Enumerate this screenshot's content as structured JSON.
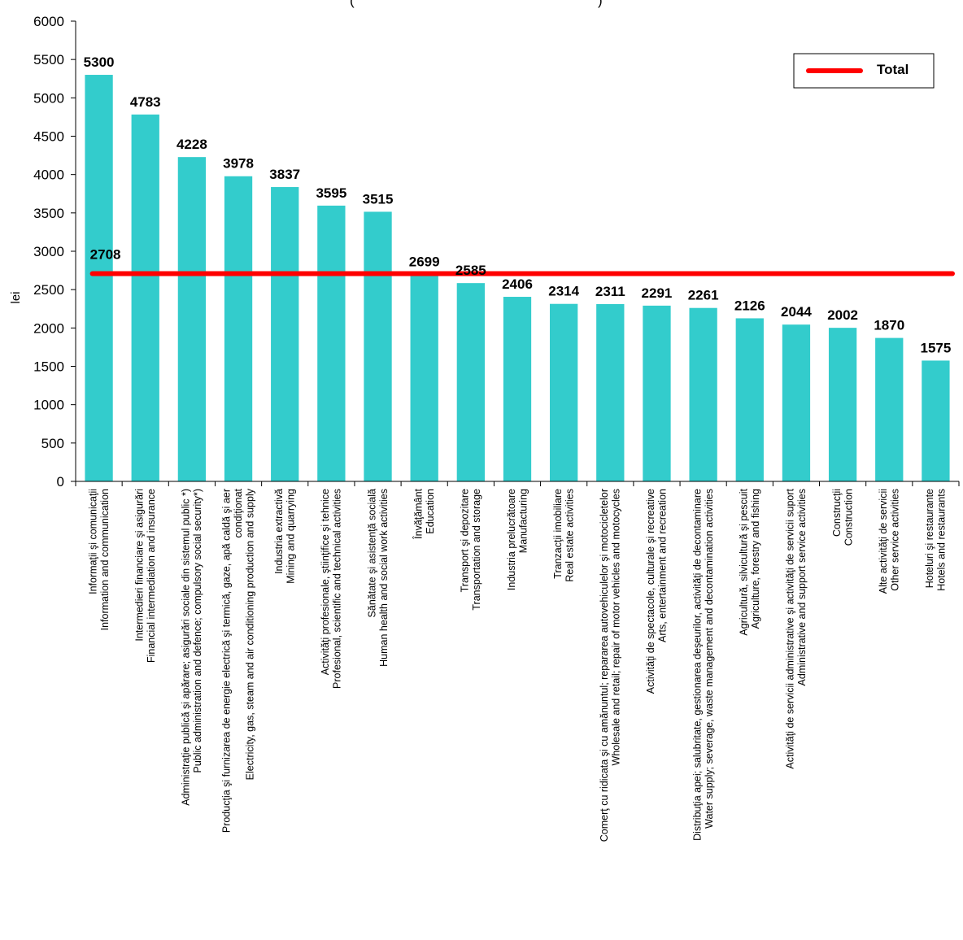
{
  "title_fragment": "(",
  "title_fragment_end": ")",
  "chart_data": {
    "type": "bar",
    "ylabel": "lei",
    "ylim": [
      0,
      6000
    ],
    "yticks": [
      0,
      500,
      1000,
      1500,
      2000,
      2500,
      3000,
      3500,
      4000,
      4500,
      5000,
      5500,
      6000
    ],
    "grid": false,
    "legend_position": "top-right",
    "categories": [
      [
        "Informaţii şi comunicaţii",
        "Information and communication"
      ],
      [
        "Intermedieri financiare şi asigurări",
        "Financial intermediation and insurance"
      ],
      [
        "Administraţie publică şi apărare; asigurări sociale din sistemul public *)",
        "Public administration and defence; compulsory social security*)"
      ],
      [
        "Producţia şi furnizarea de energie electrică şi termică, gaze, apă caldă şi aer",
        "condiţionat",
        "Electricity, gas, steam and air conditioning production and supply"
      ],
      [
        "Industria extractivă",
        "Mining and quarrying"
      ],
      [
        "Activităţi profesionale, ştiinţifice şi tehnice",
        "Profesional, scientific and technical activities"
      ],
      [
        "Sănătate şi asistenţă socială",
        "Human health and social work activities"
      ],
      [
        "Învăţământ",
        "Education"
      ],
      [
        "Transport şi depozitare",
        "Transportation and storage"
      ],
      [
        "Industria prelucrătoare",
        "Manufacturing"
      ],
      [
        "Tranzacţii imobiliare",
        "Real estate activities"
      ],
      [
        "Comerţ cu ridicata şi cu amănuntul; repararea autovehiculelor şi motocicletelor",
        "Wholesale and retail; repair of motor vehicles and motocycles"
      ],
      [
        "Activităţi de spectacole, culturale şi recreative",
        "Arts, entertainment and recreation"
      ],
      [
        "Distribuţia apei; salubritate, gestionarea deşeurilor, activităţi de decontaminare",
        "Water supply; severage, waste management and decontamination activities"
      ],
      [
        "Agricultură, silvicultură şi pescuit",
        "Agriculture, forestry and fishing"
      ],
      [
        "Activităţi de servicii administrative şi activităţi de servicii suport",
        "Administrative and support service activities"
      ],
      [
        "Construcţii",
        "Construction"
      ],
      [
        "Alte activităţi de servicii",
        "Other service activities"
      ],
      [
        "Hoteluri şi restaurante",
        "Hotels and restaurants"
      ]
    ],
    "values": [
      5300,
      4783,
      4228,
      3978,
      3837,
      3595,
      3515,
      2699,
      2585,
      2406,
      2314,
      2311,
      2291,
      2261,
      2126,
      2044,
      2002,
      1870,
      1575
    ],
    "total": {
      "name": "Total",
      "value": 2708
    },
    "colors": {
      "bar": "#33CCCC",
      "total_line": "#FF0000",
      "axis": "#000000"
    }
  }
}
